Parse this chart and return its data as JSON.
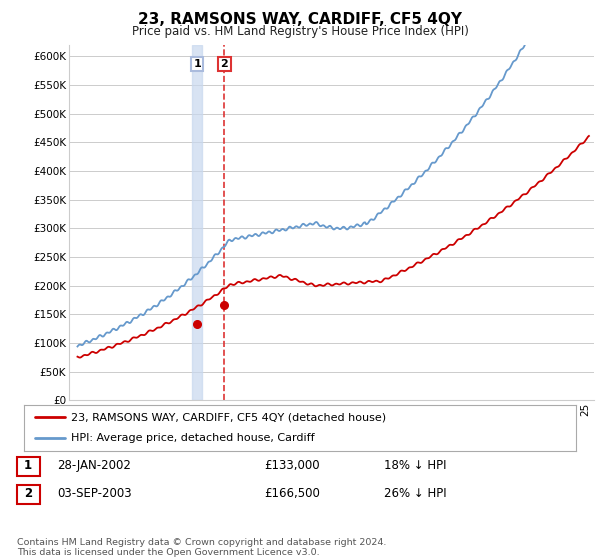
{
  "title": "23, RAMSONS WAY, CARDIFF, CF5 4QY",
  "subtitle": "Price paid vs. HM Land Registry's House Price Index (HPI)",
  "ylabel_ticks": [
    "£0",
    "£50K",
    "£100K",
    "£150K",
    "£200K",
    "£250K",
    "£300K",
    "£350K",
    "£400K",
    "£450K",
    "£500K",
    "£550K",
    "£600K"
  ],
  "ylim": [
    0,
    620000
  ],
  "xlim_start": 1994.5,
  "xlim_end": 2025.5,
  "sale1_date": 2002.08,
  "sale1_price": 133000,
  "sale1_label": "1",
  "sale2_date": 2003.68,
  "sale2_price": 166500,
  "sale2_label": "2",
  "legend_line1": "23, RAMSONS WAY, CARDIFF, CF5 4QY (detached house)",
  "legend_line2": "HPI: Average price, detached house, Cardiff",
  "table_row1": [
    "1",
    "28-JAN-2002",
    "£133,000",
    "18% ↓ HPI"
  ],
  "table_row2": [
    "2",
    "03-SEP-2003",
    "£166,500",
    "26% ↓ HPI"
  ],
  "footer": "Contains HM Land Registry data © Crown copyright and database right 2024.\nThis data is licensed under the Open Government Licence v3.0.",
  "hpi_color": "#6699cc",
  "sale_color": "#cc0000",
  "vline1_fill": "#c8d8ee",
  "vline2_color": "#dd3333",
  "grid_color": "#cccccc",
  "bg_color": "#ffffff",
  "marker_color": "#cc0000"
}
